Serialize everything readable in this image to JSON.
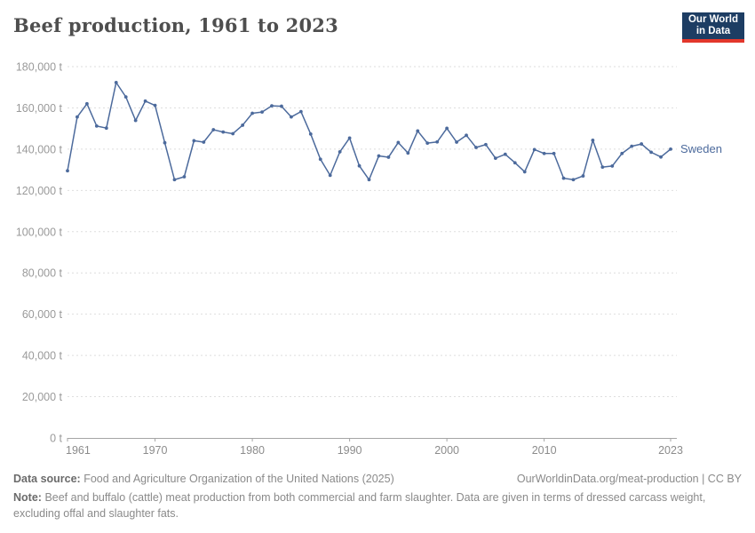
{
  "header": {
    "title": "Beef production, 1961 to 2023",
    "logo": {
      "line1": "Our World",
      "line2": "in Data"
    }
  },
  "chart_data": {
    "type": "line",
    "title": "Beef production, 1961 to 2023",
    "unit": "tonnes",
    "x_range": [
      1961,
      2023
    ],
    "ylim": [
      0,
      180000
    ],
    "y_tick_interval": 20000,
    "y_tick_labels": [
      "0 t",
      "20,000 t",
      "40,000 t",
      "60,000 t",
      "80,000 t",
      "100,000 t",
      "120,000 t",
      "140,000 t",
      "160,000 t",
      "180,000 t"
    ],
    "x_ticks": [
      1961,
      1970,
      1980,
      1990,
      2000,
      2010,
      2023
    ],
    "grid": "horizontal dashed",
    "legend_position": "end-of-line-label",
    "colors": {
      "line": "#4C6A9C",
      "gridline": "#dedede",
      "axis": "#a5a5a5",
      "y_tick_text": "#9a9a9a",
      "x_tick_text": "#8c8c8c"
    },
    "series": [
      {
        "name": "Sweden",
        "color": "#4C6A9C",
        "x": [
          1961,
          1962,
          1963,
          1964,
          1965,
          1966,
          1967,
          1968,
          1969,
          1970,
          1971,
          1972,
          1973,
          1974,
          1975,
          1976,
          1977,
          1978,
          1979,
          1980,
          1981,
          1982,
          1983,
          1984,
          1985,
          1986,
          1987,
          1988,
          1989,
          1990,
          1991,
          1992,
          1993,
          1994,
          1995,
          1996,
          1997,
          1998,
          1999,
          2000,
          2001,
          2002,
          2003,
          2004,
          2005,
          2006,
          2007,
          2008,
          2009,
          2010,
          2011,
          2012,
          2013,
          2014,
          2015,
          2016,
          2017,
          2018,
          2019,
          2020,
          2021,
          2022,
          2023
        ],
        "values": [
          129500,
          155600,
          162000,
          151200,
          150200,
          172300,
          165300,
          153900,
          163300,
          161200,
          143100,
          125200,
          126600,
          144100,
          143400,
          149400,
          148300,
          147500,
          151600,
          157400,
          158000,
          161000,
          160800,
          155600,
          158200,
          147300,
          135100,
          127300,
          138700,
          145400,
          131900,
          125200,
          136700,
          136100,
          143200,
          138100,
          148800,
          142900,
          143500,
          150100,
          143400,
          146700,
          140800,
          142200,
          135600,
          137500,
          133400,
          129000,
          139800,
          137900,
          137900,
          125900,
          125200,
          127000,
          144300,
          131300,
          131800,
          137900,
          141400,
          142500,
          138500,
          136200,
          140000
        ]
      }
    ]
  },
  "footer": {
    "data_source_label": "Data source:",
    "data_source_text": "Food and Agriculture Organization of the United Nations (2025)",
    "citation": "OurWorldinData.org/meat-production | CC BY",
    "note_label": "Note:",
    "note_text": "Beef and buffalo (cattle) meat production from both commercial and farm slaughter. Data are given in terms of dressed carcass weight, excluding offal and slaughter fats."
  }
}
